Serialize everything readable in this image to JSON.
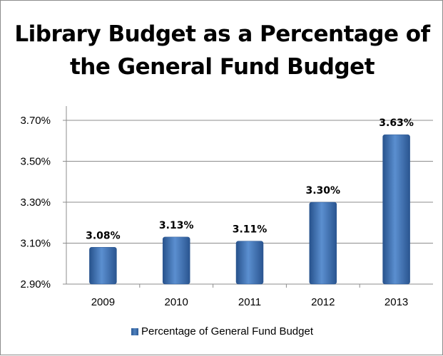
{
  "chart_data": {
    "type": "bar",
    "title": "Library Budget as a Percentage of the General Fund Budget",
    "categories": [
      "2009",
      "2010",
      "2011",
      "2012",
      "2013"
    ],
    "series": [
      {
        "name": "Percentage of General Fund Budget",
        "values": [
          3.08,
          3.13,
          3.11,
          3.3,
          3.63
        ],
        "labels": [
          "3.08%",
          "3.13%",
          "3.11%",
          "3.30%",
          "3.63%"
        ],
        "color": "#4f81bd"
      }
    ],
    "ylim": [
      2.9,
      3.7
    ],
    "yticks": [
      2.9,
      3.1,
      3.3,
      3.5,
      3.7
    ],
    "ytick_labels": [
      "2.90%",
      "3.10%",
      "3.30%",
      "3.50%",
      "3.70%"
    ],
    "xlabel": "",
    "ylabel": "",
    "grid": true,
    "legend_position": "bottom"
  }
}
